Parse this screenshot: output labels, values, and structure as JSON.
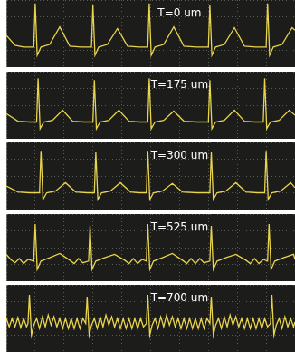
{
  "chart_data": [
    {
      "type": "line",
      "title": "T=0 um",
      "color": "#e8d44d",
      "grid": true,
      "tick_labels": false,
      "xlim": [
        0,
        10
      ],
      "ylim": [
        0,
        4
      ],
      "xticks": [
        0,
        1,
        2,
        3,
        4,
        5,
        6,
        7,
        8,
        9,
        10
      ],
      "yticks": [
        0,
        1,
        2,
        3,
        4
      ],
      "x": [
        0,
        0.3,
        0.6,
        0.95,
        1,
        1.07,
        1.2,
        1.5,
        1.85,
        2.2,
        2.6,
        2.95,
        3,
        3.07,
        3.2,
        3.5,
        3.85,
        4.2,
        4.6,
        4.9,
        4.95,
        5.02,
        5.15,
        5.45,
        5.8,
        6.15,
        6.6,
        7,
        7.05,
        7.12,
        7.25,
        7.55,
        7.9,
        8.25,
        8.65,
        9,
        9.05,
        9.12,
        9.25,
        9.55,
        9.9,
        10
      ],
      "values": [
        1.9,
        1.3,
        1.2,
        1.2,
        3.8,
        0.7,
        1.2,
        1.35,
        2.4,
        1.25,
        1.2,
        1.2,
        3.7,
        0.7,
        1.2,
        1.35,
        2.3,
        1.25,
        1.2,
        1.2,
        3.8,
        0.7,
        1.2,
        1.35,
        2.4,
        1.25,
        1.2,
        1.2,
        3.7,
        0.7,
        1.2,
        1.35,
        2.35,
        1.25,
        1.2,
        1.2,
        3.8,
        0.7,
        1.2,
        1.35,
        2.35,
        2.2
      ]
    },
    {
      "type": "line",
      "title": "T=175 um",
      "color": "#e8d44d",
      "grid": true,
      "tick_labels": false,
      "xlim": [
        0,
        10
      ],
      "ylim": [
        0,
        4
      ],
      "xticks": [
        0,
        1,
        2,
        3,
        4,
        5,
        6,
        7,
        8,
        9,
        10
      ],
      "yticks": [
        0,
        1,
        2,
        3,
        4
      ],
      "x": [
        0,
        0.4,
        0.8,
        1.05,
        1.1,
        1.17,
        1.3,
        1.6,
        1.95,
        2.3,
        2.7,
        3,
        3.05,
        3.12,
        3.25,
        3.55,
        3.9,
        4.25,
        4.6,
        4.9,
        4.95,
        5.02,
        5.15,
        5.45,
        5.8,
        6.15,
        6.6,
        7,
        7.05,
        7.12,
        7.25,
        7.55,
        7.9,
        8.25,
        8.6,
        8.9,
        8.95,
        9.02,
        9.15,
        9.45,
        9.8,
        10
      ],
      "values": [
        1.5,
        1.05,
        1.0,
        1.0,
        3.6,
        0.6,
        1.0,
        1.1,
        1.7,
        1.05,
        1.0,
        1.0,
        3.5,
        0.6,
        1.0,
        1.1,
        1.7,
        1.05,
        1.0,
        1.0,
        3.6,
        0.6,
        1.0,
        1.1,
        1.65,
        1.05,
        1.0,
        1.0,
        3.5,
        0.6,
        1.0,
        1.1,
        1.7,
        1.05,
        1.0,
        1.0,
        3.6,
        0.6,
        1.0,
        1.1,
        1.7,
        1.4
      ]
    },
    {
      "type": "line",
      "title": "T=300 um",
      "color": "#e8d44d",
      "grid": true,
      "tick_labels": false,
      "xlim": [
        0,
        10
      ],
      "ylim": [
        0,
        4
      ],
      "xticks": [
        0,
        1,
        2,
        3,
        4,
        5,
        6,
        7,
        8,
        9,
        10
      ],
      "yticks": [
        0,
        1,
        2,
        3,
        4
      ],
      "x": [
        0,
        0.4,
        0.8,
        1.15,
        1.2,
        1.27,
        1.4,
        1.7,
        2.05,
        2.4,
        2.8,
        3.05,
        3.1,
        3.17,
        3.3,
        3.6,
        3.95,
        4.3,
        4.6,
        4.85,
        4.9,
        4.97,
        5.1,
        5.4,
        5.75,
        6.1,
        6.6,
        7.05,
        7.1,
        7.17,
        7.3,
        7.6,
        7.95,
        8.3,
        8.7,
        8.95,
        9,
        9.07,
        9.2,
        9.5,
        9.85,
        10
      ],
      "values": [
        1.4,
        1.05,
        1.0,
        1.0,
        3.5,
        0.6,
        1.0,
        1.1,
        1.6,
        1.05,
        1.0,
        1.0,
        3.4,
        0.6,
        1.0,
        1.1,
        1.6,
        1.05,
        1.0,
        1.0,
        3.5,
        0.6,
        1.0,
        1.1,
        1.55,
        1.05,
        1.0,
        1.0,
        3.4,
        0.6,
        1.0,
        1.1,
        1.6,
        1.05,
        1.0,
        1.0,
        3.5,
        0.6,
        1.0,
        1.1,
        1.6,
        1.3
      ]
    },
    {
      "type": "line",
      "title": "T=525 um",
      "color": "#e8d44d",
      "grid": true,
      "tick_labels": false,
      "xlim": [
        0,
        10
      ],
      "ylim": [
        0,
        4
      ],
      "xticks": [
        0,
        1,
        2,
        3,
        4,
        5,
        6,
        7,
        8,
        9,
        10
      ],
      "yticks": [
        0,
        1,
        2,
        3,
        4
      ],
      "x": [
        0,
        0.15,
        0.3,
        0.45,
        0.6,
        0.75,
        0.95,
        1,
        1.07,
        1.2,
        1.5,
        1.85,
        2.2,
        2.35,
        2.5,
        2.65,
        2.85,
        2.9,
        2.97,
        3.1,
        3.4,
        3.75,
        4.1,
        4.25,
        4.4,
        4.55,
        4.7,
        4.85,
        4.9,
        4.97,
        5.1,
        5.4,
        5.75,
        6.1,
        6.25,
        6.4,
        6.55,
        6.7,
        6.85,
        7.05,
        7.1,
        7.17,
        7.3,
        7.6,
        7.95,
        8.3,
        8.45,
        8.6,
        8.75,
        8.9,
        9.05,
        9.1,
        9.17,
        9.3,
        9.6,
        9.95,
        10
      ],
      "values": [
        1.6,
        1.3,
        1.1,
        1.35,
        1.05,
        1.3,
        1.2,
        3.4,
        0.7,
        1.2,
        1.4,
        1.65,
        1.25,
        1.05,
        1.35,
        1.1,
        1.2,
        3.3,
        0.7,
        1.2,
        1.4,
        1.6,
        1.25,
        1.05,
        1.35,
        1.05,
        1.3,
        1.2,
        3.4,
        0.7,
        1.2,
        1.4,
        1.65,
        1.25,
        1.05,
        1.35,
        1.05,
        1.35,
        1.1,
        1.2,
        3.3,
        0.7,
        1.2,
        1.4,
        1.6,
        1.25,
        1.05,
        1.35,
        1.05,
        1.3,
        1.2,
        3.4,
        0.7,
        1.2,
        1.4,
        1.6,
        1.3
      ]
    },
    {
      "type": "line",
      "title": "T=700 um",
      "color": "#e8d44d",
      "grid": true,
      "tick_labels": false,
      "xlim": [
        0,
        10
      ],
      "ylim": [
        0,
        4
      ],
      "xticks": [
        0,
        1,
        2,
        3,
        4,
        5,
        6,
        7,
        8,
        9,
        10
      ],
      "yticks": [
        0,
        1,
        2,
        3,
        4
      ],
      "x": [
        0,
        0.1,
        0.2,
        0.3,
        0.4,
        0.5,
        0.6,
        0.7,
        0.75,
        0.8,
        0.87,
        0.95,
        1.05,
        1.15,
        1.25,
        1.35,
        1.45,
        1.55,
        1.65,
        1.75,
        1.85,
        1.95,
        2.05,
        2.15,
        2.25,
        2.35,
        2.45,
        2.55,
        2.65,
        2.75,
        2.8,
        2.87,
        2.95,
        3.05,
        3.15,
        3.25,
        3.35,
        3.45,
        3.55,
        3.65,
        3.75,
        3.85,
        3.95,
        4.05,
        4.15,
        4.25,
        4.35,
        4.45,
        4.55,
        4.65,
        4.75,
        4.85,
        4.9,
        4.97,
        5.05,
        5.15,
        5.25,
        5.35,
        5.45,
        5.55,
        5.65,
        5.75,
        5.85,
        5.95,
        6.05,
        6.15,
        6.25,
        6.35,
        6.45,
        6.55,
        6.65,
        6.75,
        6.85,
        6.95,
        7.05,
        7.1,
        7.17,
        7.25,
        7.35,
        7.45,
        7.55,
        7.65,
        7.75,
        7.85,
        7.95,
        8.05,
        8.15,
        8.25,
        8.35,
        8.45,
        8.55,
        8.65,
        8.75,
        8.85,
        8.95,
        9.05,
        9.15,
        9.2,
        9.27,
        9.35,
        9.45,
        9.55,
        9.65,
        9.75,
        9.85,
        9.95,
        10
      ],
      "values": [
        2.0,
        1.5,
        2.0,
        1.5,
        2.05,
        1.45,
        2.0,
        1.5,
        1.7,
        3.4,
        1.0,
        1.6,
        2.0,
        1.4,
        2.1,
        1.5,
        2.2,
        1.6,
        2.1,
        1.5,
        2.0,
        1.4,
        2.0,
        1.4,
        2.0,
        1.4,
        2.0,
        1.4,
        2.0,
        1.7,
        3.3,
        1.0,
        1.6,
        2.0,
        1.4,
        2.1,
        1.5,
        2.2,
        1.6,
        2.1,
        1.5,
        2.0,
        1.4,
        2.0,
        1.4,
        2.0,
        1.4,
        2.0,
        1.4,
        2.0,
        1.5,
        1.7,
        3.4,
        1.0,
        1.6,
        2.0,
        1.4,
        2.1,
        1.5,
        2.2,
        1.6,
        2.1,
        1.5,
        2.0,
        1.4,
        2.0,
        1.4,
        2.0,
        1.4,
        2.0,
        1.4,
        2.0,
        1.4,
        2.0,
        1.7,
        3.3,
        1.0,
        1.6,
        2.0,
        1.4,
        2.1,
        1.5,
        2.2,
        1.6,
        2.1,
        1.5,
        2.0,
        1.4,
        2.0,
        1.4,
        2.0,
        1.4,
        2.0,
        1.4,
        2.0,
        1.5,
        1.7,
        3.4,
        1.0,
        1.6,
        2.0,
        1.4,
        2.1,
        1.5,
        2.0,
        1.5,
        1.8
      ]
    }
  ]
}
